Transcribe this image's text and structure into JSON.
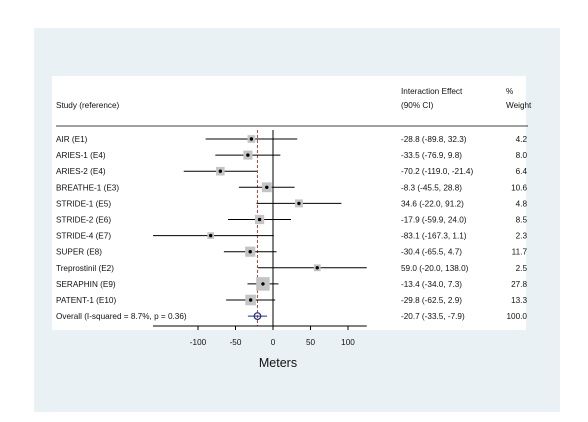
{
  "chart_data": {
    "type": "forest",
    "header": {
      "study": "Study (reference)",
      "effect_line1": "Interaction Effect",
      "effect_line2": "(90% CI)",
      "weight_line1": "%",
      "weight_line2": "Weight"
    },
    "xlabel": "Meters",
    "xlim": [
      -160,
      125
    ],
    "xticks": [
      "-100",
      "-50",
      "0",
      "50",
      "100"
    ],
    "tick_values": [
      -100,
      -50,
      0,
      50,
      100
    ],
    "null_line": 0,
    "overall_line": -20.7,
    "rows": [
      {
        "study": "AIR (E1)",
        "est": -28.8,
        "lo": -89.8,
        "hi": 32.3,
        "ci_text": "-28.8 (-89.8, 32.3)",
        "weight": 4.2,
        "weight_text": "4.2"
      },
      {
        "study": "ARIES-1 (E4)",
        "est": -33.5,
        "lo": -76.9,
        "hi": 9.8,
        "ci_text": "-33.5 (-76.9, 9.8)",
        "weight": 8.0,
        "weight_text": "8.0"
      },
      {
        "study": "ARIES-2 (E4)",
        "est": -70.2,
        "lo": -119.0,
        "hi": -21.4,
        "ci_text": "-70.2 (-119.0, -21.4)",
        "weight": 6.4,
        "weight_text": "6.4"
      },
      {
        "study": "BREATHE-1 (E3)",
        "est": -8.3,
        "lo": -45.5,
        "hi": 28.8,
        "ci_text": "-8.3 (-45.5, 28.8)",
        "weight": 10.6,
        "weight_text": "10.6"
      },
      {
        "study": "STRIDE-1 (E5)",
        "est": 34.6,
        "lo": -22.0,
        "hi": 91.2,
        "ci_text": "34.6 (-22.0, 91.2)",
        "weight": 4.8,
        "weight_text": "4.8"
      },
      {
        "study": "STRIDE-2 (E6)",
        "est": -17.9,
        "lo": -59.9,
        "hi": 24.0,
        "ci_text": "-17.9 (-59.9, 24.0)",
        "weight": 8.5,
        "weight_text": "8.5"
      },
      {
        "study": "STRIDE-4 (E7)",
        "est": -83.1,
        "lo": -167.3,
        "hi": 1.1,
        "ci_text": "-83.1 (-167.3, 1.1)",
        "weight": 2.3,
        "weight_text": "2.3"
      },
      {
        "study": "SUPER (E8)",
        "est": -30.4,
        "lo": -65.5,
        "hi": 4.7,
        "ci_text": "-30.4 (-65.5, 4.7)",
        "weight": 11.7,
        "weight_text": "11.7"
      },
      {
        "study": "Treprostinil (E2)",
        "est": 59.0,
        "lo": -20.0,
        "hi": 138.0,
        "ci_text": "59.0 (-20.0, 138.0)",
        "weight": 2.5,
        "weight_text": "2.5"
      },
      {
        "study": "SERAPHIN (E9)",
        "est": -13.4,
        "lo": -34.0,
        "hi": 7.3,
        "ci_text": "-13.4 (-34.0, 7.3)",
        "weight": 27.8,
        "weight_text": "27.8"
      },
      {
        "study": "PATENT-1 (E10)",
        "est": -29.8,
        "lo": -62.5,
        "hi": 2.9,
        "ci_text": "-29.8 (-62.5, 2.9)",
        "weight": 13.3,
        "weight_text": "13.3"
      }
    ],
    "overall": {
      "study": "Overall (I-squared = 8.7%, p = 0.36)",
      "est": -20.7,
      "lo": -33.5,
      "hi": -7.9,
      "ci_text": "-20.7 (-33.5, -7.9)",
      "weight_text": "100.0"
    },
    "colors": {
      "line": "#000000",
      "box": "#c4c4c4",
      "overall_marker": "#1d2c8c",
      "overall_line": "#b8413e"
    }
  }
}
